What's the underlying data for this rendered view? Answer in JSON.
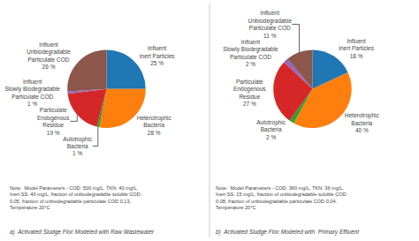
{
  "chart_data": [
    {
      "type": "pie",
      "title": "a)  Activated Sludge Floc Modeled with Raw Wastewater",
      "annotations": [
        "Note:  Model Parameters - COD: 500 mg/L, TKN: 40 mg/L,\nInert SS: 40 mg/L, fraction of unbiodegradable soluble COD\n0.05, fraction of unbiodegradable particulate COD 0.13,\nTemperature 20°C"
      ],
      "categories": [
        "Influent\nInert Particles",
        "Heterotrophic\nBacteria",
        "Autotrophic\nBacteria",
        "Particulate\nEndogenous\nResidue",
        "Influent\nSlowly Biodegradable\nParticulate COD",
        "Influent\nUnbiodegradable\nParticulate COD"
      ],
      "values": [
        25,
        28,
        1,
        19,
        1,
        26
      ],
      "value_labels": [
        "25 %",
        "28 %",
        "1 %",
        "19 %",
        "1 %",
        "26 %"
      ],
      "data_labels": true
    },
    {
      "type": "pie",
      "title": "b)  Activated Sludge Floc Modeled with  Primary Effluent",
      "annotations": [
        "Note:  Model Parameters - COD: 360 mg/L, TKN: 36 mg/L,\nInert SS: 15 mg/L, fraction of unbiodegradable soluble COD\n0.08, fraction of unbiodegradable particulate COD 0.04,\nTemperature 20°C"
      ],
      "categories": [
        "Influent\nInert Particles",
        "Heterotrophic\nBacteria",
        "Autotrophic\nBacteria",
        "Particulate\nEndogenous\nResidue",
        "Influent\nSlowly Biodegradable\nParticulate COD",
        "Influent\nUnbiodegradable\nParticulate COD"
      ],
      "values": [
        18,
        40,
        2,
        27,
        2,
        11
      ],
      "value_labels": [
        "18 %",
        "40 %",
        "2 %",
        "27 %",
        "2 %",
        "11 %"
      ],
      "data_labels": true
    }
  ]
}
